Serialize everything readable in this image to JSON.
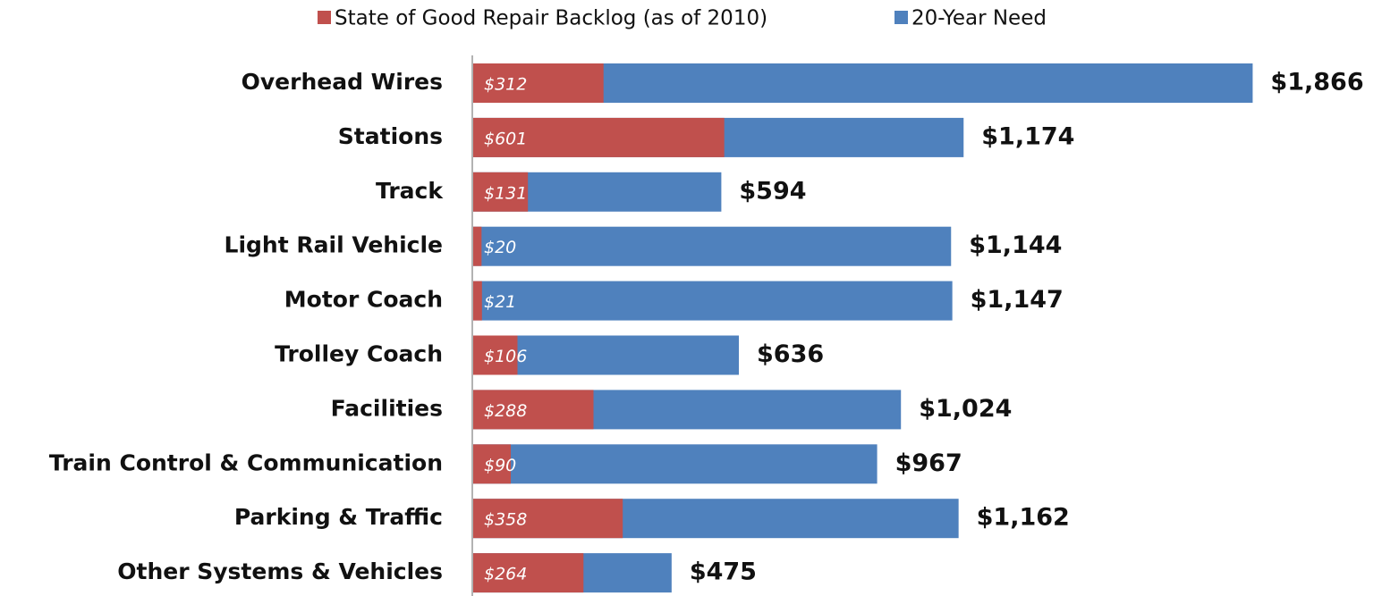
{
  "chart_data": {
    "type": "bar",
    "orientation": "horizontal",
    "overlap": true,
    "categories": [
      "Overhead Wires",
      "Stations",
      "Track",
      "Light Rail Vehicle",
      "Motor Coach",
      "Trolley Coach",
      "Facilities",
      "Train Control & Communication",
      "Parking & Traffic",
      "Other Systems & Vehicles"
    ],
    "series": [
      {
        "name": "20-Year Need",
        "color": "#4f81bd",
        "values": [
          1866,
          1174,
          594,
          1144,
          1147,
          636,
          1024,
          967,
          1162,
          475
        ],
        "value_labels": [
          "$1,866",
          "$1,174",
          "$594",
          "$1,144",
          "$1,147",
          "$636",
          "$1,024",
          "$967",
          "$1,162",
          "$475"
        ]
      },
      {
        "name": "State of Good Repair Backlog (as of 2010)",
        "color": "#c0504d",
        "values": [
          312,
          601,
          131,
          20,
          21,
          106,
          288,
          90,
          358,
          264
        ],
        "value_labels": [
          "$312",
          "$601",
          "$131",
          "$20",
          "$21",
          "$106",
          "$288",
          "$90",
          "$358",
          "$264"
        ]
      }
    ],
    "legend_order": [
      1,
      0
    ],
    "xlim": [
      0,
      2000
    ]
  }
}
